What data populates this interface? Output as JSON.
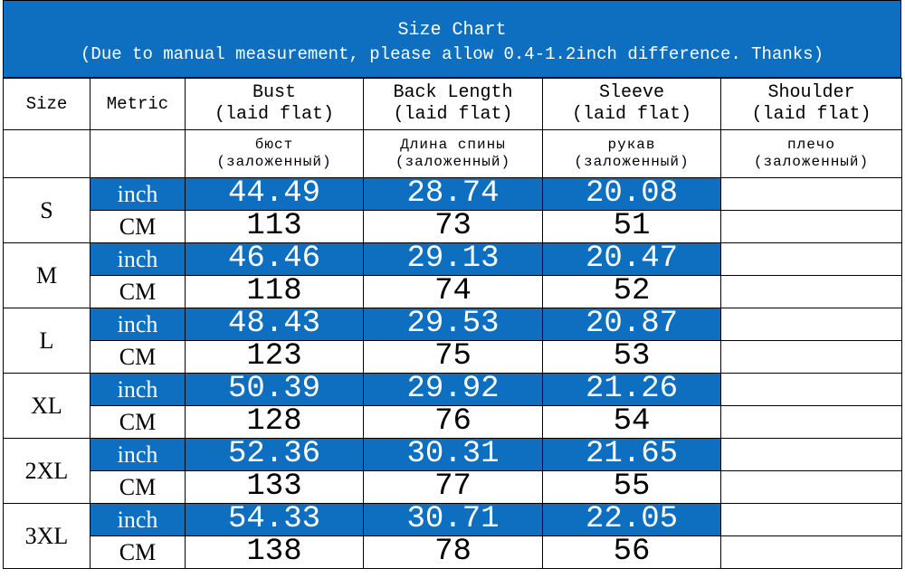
{
  "title": "Size Chart",
  "note": "(Due to manual measurement, please allow 0.4-1.2inch difference. Thanks)",
  "headers": {
    "size": "Size",
    "metric": "Metric",
    "bust": "Bust",
    "bust_sub": "(laid flat)",
    "back_length": "Back Length",
    "back_length_sub": "(laid flat)",
    "sleeve": "Sleeve",
    "sleeve_sub": "(laid flat)",
    "shoulder": "Shoulder",
    "shoulder_sub": "(laid flat)"
  },
  "ru_headers": {
    "bust": "бюст",
    "bust_sub": "(заложенный)",
    "back_length": "Длина спины",
    "back_length_sub": "(заложенный)",
    "sleeve": "рукав",
    "sleeve_sub": "(заложенный)",
    "shoulder": "плечо",
    "shoulder_sub": "(заложенный)"
  },
  "units": {
    "inch": "inch",
    "cm": "CM"
  },
  "colors": {
    "accent": "#0e6fc1",
    "text_on_accent": "#ffffff"
  },
  "rows": [
    {
      "size": "S",
      "inch": {
        "bust": "44.49",
        "back": "28.74",
        "sleeve": "20.08",
        "shoulder": ""
      },
      "cm": {
        "bust": "113",
        "back": "73",
        "sleeve": "51",
        "shoulder": ""
      }
    },
    {
      "size": "M",
      "inch": {
        "bust": "46.46",
        "back": "29.13",
        "sleeve": "20.47",
        "shoulder": ""
      },
      "cm": {
        "bust": "118",
        "back": "74",
        "sleeve": "52",
        "shoulder": ""
      }
    },
    {
      "size": "L",
      "inch": {
        "bust": "48.43",
        "back": "29.53",
        "sleeve": "20.87",
        "shoulder": ""
      },
      "cm": {
        "bust": "123",
        "back": "75",
        "sleeve": "53",
        "shoulder": ""
      }
    },
    {
      "size": "XL",
      "inch": {
        "bust": "50.39",
        "back": "29.92",
        "sleeve": "21.26",
        "shoulder": ""
      },
      "cm": {
        "bust": "128",
        "back": "76",
        "sleeve": "54",
        "shoulder": ""
      }
    },
    {
      "size": "2XL",
      "inch": {
        "bust": "52.36",
        "back": "30.31",
        "sleeve": "21.65",
        "shoulder": ""
      },
      "cm": {
        "bust": "133",
        "back": "77",
        "sleeve": "55",
        "shoulder": ""
      }
    },
    {
      "size": "3XL",
      "inch": {
        "bust": "54.33",
        "back": "30.71",
        "sleeve": "22.05",
        "shoulder": ""
      },
      "cm": {
        "bust": "138",
        "back": "78",
        "sleeve": "56",
        "shoulder": ""
      }
    }
  ]
}
